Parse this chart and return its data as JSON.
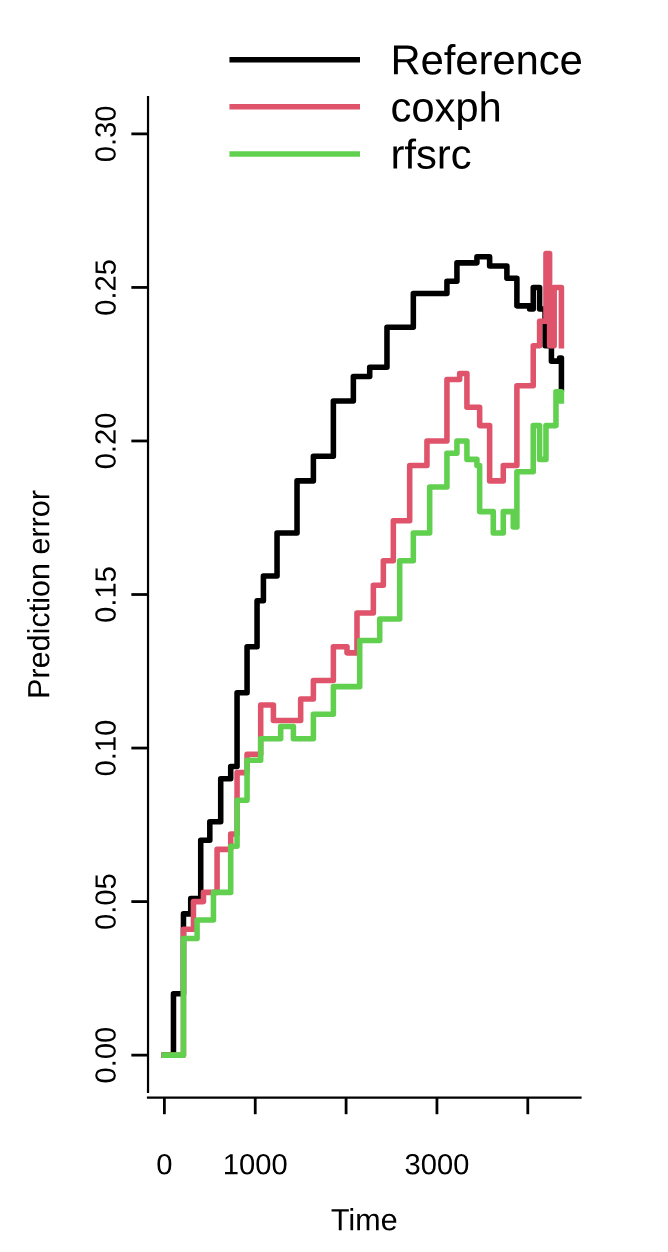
{
  "chart_data": {
    "type": "step",
    "xlabel": "Time",
    "ylabel": "Prediction error",
    "xlim": [
      -180,
      4580
    ],
    "ylim": [
      -0.012,
      0.312
    ],
    "xticks": [
      0,
      1000,
      {
        "value": 2000,
        "label": null
      },
      3000,
      {
        "value": 4000,
        "label": null
      }
    ],
    "yticks": [
      {
        "value": 0,
        "label": "0.00"
      },
      {
        "value": 0.05,
        "label": "0.05"
      },
      {
        "value": 0.1,
        "label": "0.10"
      },
      {
        "value": 0.15,
        "label": "0.15"
      },
      {
        "value": 0.2,
        "label": "0.20"
      },
      {
        "value": 0.25,
        "label": "0.25"
      },
      {
        "value": 0.3,
        "label": "0.30"
      }
    ],
    "grid": false,
    "legend": "top",
    "line_style": "solid",
    "marker": "none",
    "series": [
      {
        "name": "Reference",
        "color": "#000000",
        "x": [
          0,
          100,
          210,
          290,
          400,
          500,
          620,
          730,
          800,
          910,
          1020,
          1090,
          1240,
          1460,
          1640,
          1860,
          2080,
          2260,
          2450,
          2740,
          3110,
          3220,
          3440,
          3580,
          3770,
          3880,
          4020,
          4060,
          4130,
          4190,
          4260,
          4350,
          4370
        ],
        "values": [
          0,
          0.02,
          0.046,
          0.051,
          0.07,
          0.076,
          0.09,
          0.094,
          0.118,
          0.133,
          0.148,
          0.156,
          0.17,
          0.187,
          0.195,
          0.213,
          0.221,
          0.224,
          0.237,
          0.248,
          0.252,
          0.258,
          0.26,
          0.257,
          0.253,
          0.244,
          0.243,
          0.25,
          0.243,
          0.231,
          0.226,
          0.227,
          0.217
        ]
      },
      {
        "name": "coxph",
        "color": "#df536b",
        "x": [
          0,
          30,
          210,
          320,
          430,
          580,
          730,
          800,
          910,
          1060,
          1200,
          1350,
          1500,
          1640,
          1860,
          2010,
          2120,
          2300,
          2410,
          2520,
          2700,
          2890,
          3110,
          3250,
          3330,
          3470,
          3580,
          3730,
          3880,
          4060,
          4130,
          4200,
          4240,
          4290,
          4370
        ],
        "values": [
          0,
          0,
          0.041,
          0.05,
          0.053,
          0.067,
          0.072,
          0.092,
          0.098,
          0.114,
          0.109,
          0.109,
          0.116,
          0.122,
          0.133,
          0.131,
          0.144,
          0.153,
          0.161,
          0.174,
          0.192,
          0.2,
          0.22,
          0.222,
          0.211,
          0.205,
          0.187,
          0.192,
          0.218,
          0.231,
          0.239,
          0.261,
          0.231,
          0.25,
          0.231
        ]
      },
      {
        "name": "rfsrc",
        "color": "#61d04f",
        "x": [
          0,
          210,
          360,
          540,
          730,
          800,
          910,
          1060,
          1280,
          1420,
          1640,
          1860,
          2080,
          2150,
          2370,
          2590,
          2740,
          2920,
          3110,
          3220,
          3330,
          3440,
          3470,
          3620,
          3730,
          3840,
          3880,
          4060,
          4130,
          4200,
          4310,
          4370
        ],
        "values": [
          0,
          0.038,
          0.044,
          0.053,
          0.068,
          0.083,
          0.096,
          0.103,
          0.107,
          0.103,
          0.111,
          0.12,
          0.12,
          0.135,
          0.142,
          0.161,
          0.17,
          0.185,
          0.196,
          0.2,
          0.194,
          0.192,
          0.177,
          0.17,
          0.177,
          0.172,
          0.19,
          0.205,
          0.194,
          0.205,
          0.216,
          0.213
        ]
      }
    ]
  }
}
